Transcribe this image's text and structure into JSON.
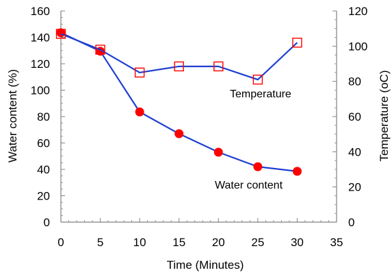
{
  "chart_data": {
    "type": "line",
    "xlabel": "Time (Minutes)",
    "ylabel_left": "Water content (%)",
    "ylabel_right": "Temperature (oC)",
    "xlim": [
      0,
      35
    ],
    "ylim_left": [
      0,
      160
    ],
    "ylim_right": [
      0,
      120
    ],
    "x_ticks": [
      "0",
      "5",
      "10",
      "15",
      "20",
      "25",
      "30",
      "35"
    ],
    "y_left_ticks": [
      "0",
      "20",
      "40",
      "60",
      "80",
      "100",
      "120",
      "140",
      "160"
    ],
    "y_right_ticks": [
      "0",
      "20",
      "40",
      "60",
      "80",
      "100",
      "120"
    ],
    "grid": false,
    "series": [
      {
        "name": "Water content",
        "axis": "left",
        "marker": "filled-circle",
        "line_color": "#1f3fd0",
        "marker_color": "#ff0000",
        "x": [
          0,
          5,
          10,
          15,
          20,
          25,
          30
        ],
        "y": [
          143.5,
          129.5,
          83.5,
          67,
          53,
          42,
          38.5
        ]
      },
      {
        "name": "Temperature",
        "axis": "right",
        "marker": "open-square",
        "line_color": "#1f3fd0",
        "marker_color": "#ff0000",
        "x": [
          0,
          5,
          10,
          15,
          20,
          25,
          30
        ],
        "y": [
          107,
          98,
          85,
          88.5,
          88.5,
          81,
          102
        ]
      }
    ]
  }
}
